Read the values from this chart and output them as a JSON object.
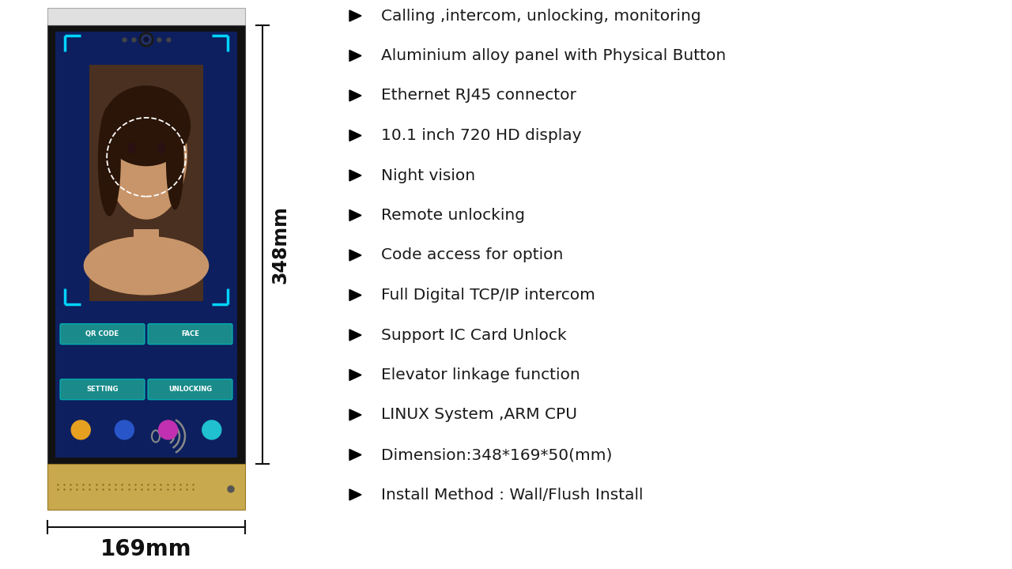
{
  "background_color": "#ffffff",
  "features": [
    "Calling ,intercom, unlocking, monitoring",
    "Aluminium alloy panel with Physical Button",
    "Ethernet RJ45 connector",
    "10.1 inch 720 HD display",
    "Night vision",
    "Remote unlocking",
    "Code access for option",
    "Full Digital TCP/IP intercom",
    "Support IC Card Unlock",
    "Elevator linkage function",
    "LINUX System ,ARM CPU",
    "Dimension:348*169*50(mm)",
    "Install Method : Wall/Flush Install"
  ],
  "dim_width": "169mm",
  "dim_height": "348mm",
  "text_color": "#1a1a1a",
  "font_size_features": 14.5,
  "screen_color": "#0d1f5e",
  "body_color": "#111111",
  "gold_color": "#c9a94e",
  "white_top_color": "#e0e0e0",
  "button_color": "#1a8a8a",
  "button_colors": [
    "#e8a020",
    "#2855c8",
    "#c030b0",
    "#20c0d0"
  ],
  "cyan_color": "#00d4ff",
  "dim_line_color": "#111111"
}
